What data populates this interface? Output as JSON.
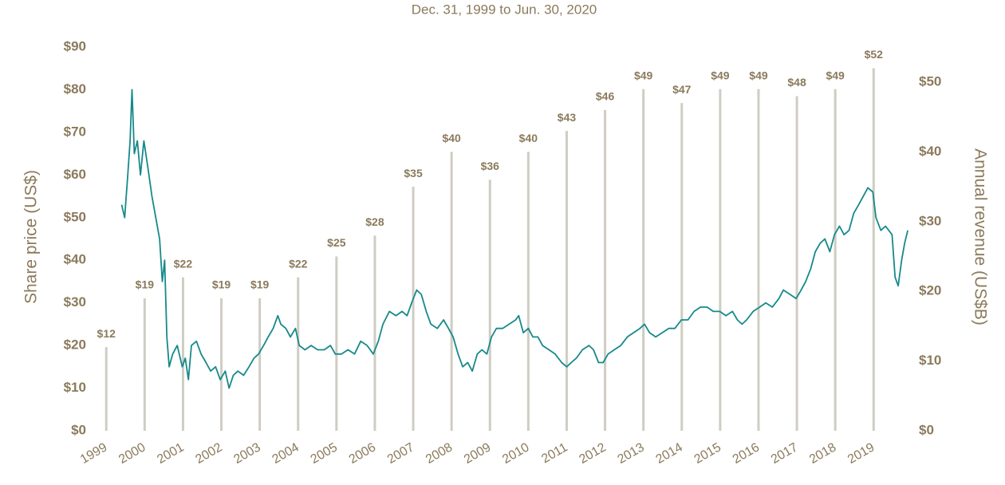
{
  "chart_data": {
    "type": "bar+line",
    "title": "Dec. 31, 1999 to Jun. 30, 2020",
    "ylabel": "Share price (US$)",
    "y2label": "Annual revenue (US$B)",
    "xlim": [
      1998.6,
      2020.2
    ],
    "xticks": [
      1999,
      2000,
      2001,
      2002,
      2003,
      2004,
      2005,
      2006,
      2007,
      2008,
      2009,
      2010,
      2011,
      2012,
      2013,
      2014,
      2015,
      2016,
      2017,
      2018,
      2019
    ],
    "ylim": [
      0,
      90
    ],
    "yticks": [
      {
        "value": 0,
        "label": "$0"
      },
      {
        "value": 10,
        "label": "$10"
      },
      {
        "value": 20,
        "label": "$20"
      },
      {
        "value": 30,
        "label": "$30"
      },
      {
        "value": 40,
        "label": "$40"
      },
      {
        "value": 50,
        "label": "$50"
      },
      {
        "value": 60,
        "label": "$60"
      },
      {
        "value": 70,
        "label": "$70"
      },
      {
        "value": 80,
        "label": "$80"
      },
      {
        "value": 90,
        "label": "$90"
      }
    ],
    "y2lim": [
      0,
      50
    ],
    "y2ticks": [
      {
        "value": 0,
        "label": "$0"
      },
      {
        "value": 10,
        "label": "$10"
      },
      {
        "value": 20,
        "label": "$20"
      },
      {
        "value": 30,
        "label": "$30"
      },
      {
        "value": 40,
        "label": "$40"
      },
      {
        "value": 50,
        "label": "$50"
      }
    ],
    "series": [
      {
        "type": "bar",
        "axis": "y2",
        "color": "#cfcdc2",
        "x": [
          1999,
          2000,
          2001,
          2002,
          2003,
          2004,
          2005,
          2006,
          2007,
          2008,
          2009,
          2010,
          2011,
          2012,
          2013,
          2014,
          2015,
          2016,
          2017,
          2018,
          2019
        ],
        "values": [
          12,
          19,
          22,
          19,
          19,
          22,
          25,
          28,
          35,
          40,
          36,
          40,
          43,
          46,
          49,
          47,
          49,
          49,
          48,
          49,
          52
        ],
        "value_labels": [
          "$12",
          "$19",
          "$22",
          "$19",
          "$19",
          "$22",
          "$25",
          "$28",
          "$35",
          "$40",
          "$36",
          "$40",
          "$43",
          "$46",
          "$49",
          "$47",
          "$49",
          "$49",
          "$48",
          "$49",
          "$52"
        ]
      },
      {
        "type": "line",
        "axis": "y",
        "color": "#17898a",
        "x": [
          1999.4,
          1999.48,
          1999.56,
          1999.62,
          1999.67,
          1999.73,
          1999.81,
          1999.89,
          1999.98,
          2000.08,
          2000.19,
          2000.29,
          2000.39,
          2000.46,
          2000.52,
          2000.58,
          2000.64,
          2000.73,
          2000.85,
          2000.98,
          2001.06,
          2001.14,
          2001.22,
          2001.35,
          2001.47,
          2001.6,
          2001.72,
          2001.85,
          2001.97,
          2002.1,
          2002.2,
          2002.31,
          2002.43,
          2002.58,
          2002.72,
          2002.85,
          2002.97,
          2003.1,
          2003.22,
          2003.35,
          2003.47,
          2003.55,
          2003.68,
          2003.8,
          2003.93,
          2004.03,
          2004.18,
          2004.34,
          2004.51,
          2004.68,
          2004.84,
          2004.97,
          2005.13,
          2005.3,
          2005.47,
          2005.63,
          2005.8,
          2005.96,
          2006.09,
          2006.21,
          2006.38,
          2006.55,
          2006.71,
          2006.84,
          2006.96,
          2007.09,
          2007.21,
          2007.34,
          2007.46,
          2007.63,
          2007.79,
          2007.92,
          2008.04,
          2008.17,
          2008.29,
          2008.42,
          2008.54,
          2008.67,
          2008.79,
          2008.92,
          2009.04,
          2009.17,
          2009.33,
          2009.5,
          2009.67,
          2009.75,
          2009.87,
          2010.0,
          2010.12,
          2010.25,
          2010.37,
          2010.54,
          2010.7,
          2010.87,
          2011.0,
          2011.12,
          2011.25,
          2011.41,
          2011.58,
          2011.7,
          2011.83,
          2011.95,
          2012.08,
          2012.24,
          2012.41,
          2012.58,
          2012.74,
          2012.91,
          2013.03,
          2013.16,
          2013.32,
          2013.49,
          2013.66,
          2013.82,
          2013.99,
          2014.16,
          2014.32,
          2014.49,
          2014.66,
          2014.82,
          2014.99,
          2015.15,
          2015.32,
          2015.45,
          2015.57,
          2015.69,
          2015.86,
          2016.03,
          2016.19,
          2016.36,
          2016.53,
          2016.65,
          2016.82,
          2016.98,
          2017.11,
          2017.23,
          2017.36,
          2017.48,
          2017.61,
          2017.73,
          2017.86,
          2017.98,
          2018.11,
          2018.23,
          2018.36,
          2018.48,
          2018.61,
          2018.73,
          2018.85,
          2018.98,
          2019.06,
          2019.19,
          2019.31,
          2019.48,
          2019.56,
          2019.64,
          2019.73,
          2019.81,
          2019.89
        ],
        "values": [
          53,
          50,
          60,
          68,
          80,
          65,
          68,
          60,
          68,
          62,
          55,
          50,
          45,
          35,
          40,
          22,
          15,
          18,
          20,
          15,
          17,
          12,
          20,
          21,
          18,
          16,
          14,
          15,
          12,
          14,
          10,
          13,
          14,
          13,
          15,
          17,
          18,
          20,
          22,
          24,
          27,
          25,
          24,
          22,
          24,
          20,
          19,
          20,
          19,
          19,
          20,
          18,
          18,
          19,
          18,
          21,
          20,
          18,
          21,
          25,
          28,
          27,
          28,
          27,
          30,
          33,
          32,
          28,
          25,
          24,
          26,
          24,
          22,
          18,
          15,
          16,
          14,
          18,
          19,
          18,
          22,
          24,
          24,
          25,
          26,
          27,
          23,
          24,
          22,
          22,
          20,
          19,
          18,
          16,
          15,
          16,
          17,
          19,
          20,
          19,
          16,
          16,
          18,
          19,
          20,
          22,
          23,
          24,
          25,
          23,
          22,
          23,
          24,
          24,
          26,
          26,
          28,
          29,
          29,
          28,
          28,
          27,
          28,
          26,
          25,
          26,
          28,
          29,
          30,
          29,
          31,
          33,
          32,
          31,
          33,
          35,
          38,
          42,
          44,
          45,
          42,
          46,
          48,
          46,
          47,
          51,
          53,
          55,
          57,
          56,
          50,
          47,
          48,
          46,
          36,
          34,
          40,
          44,
          47
        ]
      }
    ]
  }
}
